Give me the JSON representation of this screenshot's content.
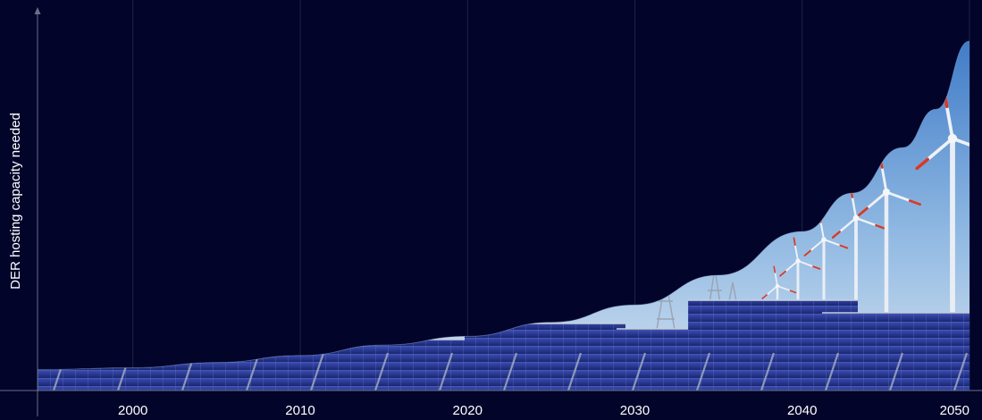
{
  "chart_data": {
    "type": "area",
    "title": "",
    "xlabel": "",
    "ylabel": "DER hosting capacity needed",
    "xlim": [
      1994.3,
      2050
    ],
    "ylim": [
      0,
      100
    ],
    "x_ticks": [
      "2000",
      "2010",
      "2020",
      "2030",
      "2040",
      "2050"
    ],
    "grid": true,
    "series": [
      {
        "x": [
          1994.3,
          2000,
          2005,
          2010,
          2015,
          2020,
          2025,
          2030,
          2035,
          2040,
          2043,
          2046,
          2048,
          2050
        ],
        "values": [
          6,
          6.5,
          8,
          10,
          13,
          15.5,
          19.5,
          24.5,
          33,
          45.5,
          56.5,
          69.5,
          80.5,
          100
        ]
      }
    ],
    "fill_imagery": "solar-panels-and-wind-turbines"
  },
  "colors": {
    "background": "#02042a",
    "axis": "#6a6f86",
    "grid": "#1f2446",
    "sky_top": "#2f6fc2",
    "sky_bottom": "#d8e6f3",
    "panel": "#2b3f9a"
  }
}
